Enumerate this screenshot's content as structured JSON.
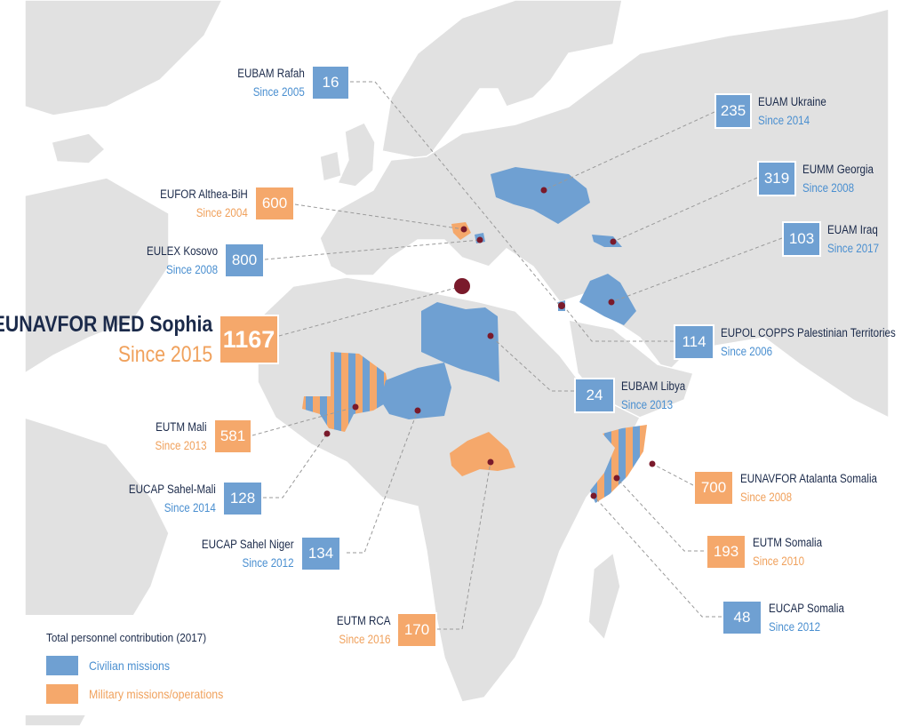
{
  "colors": {
    "civilian": "#6fa0d2",
    "military": "#f5a86b",
    "land": "#e1e1e1",
    "sea": "#ffffff",
    "dot": "#7a1a2b",
    "name_text": "#1b2a4a",
    "civilian_text": "#4a8fd0",
    "military_text": "#f0a15c"
  },
  "missions": [
    {
      "id": "rafah",
      "name": "EUBAM Rafah",
      "since": "Since 2005",
      "count": "16",
      "type": "civilian"
    },
    {
      "id": "ukraine",
      "name": "EUAM Ukraine",
      "since": "Since 2014",
      "count": "235",
      "type": "civilian"
    },
    {
      "id": "georgia",
      "name": "EUMM Georgia",
      "since": "Since 2008",
      "count": "319",
      "type": "civilian"
    },
    {
      "id": "althea",
      "name": "EUFOR Althea-BiH",
      "since": "Since 2004",
      "count": "600",
      "type": "military"
    },
    {
      "id": "iraq",
      "name": "EUAM Iraq",
      "since": "Since 2017",
      "count": "103",
      "type": "civilian"
    },
    {
      "id": "kosovo",
      "name": "EULEX Kosovo",
      "since": "Since 2008",
      "count": "800",
      "type": "civilian"
    },
    {
      "id": "sophia",
      "name": "EUNAVFOR MED Sophia",
      "since": "Since 2015",
      "count": "1167",
      "type": "military"
    },
    {
      "id": "copps",
      "name": "EUPOL COPPS Palestinian Territories",
      "since": "Since 2006",
      "count": "114",
      "type": "civilian"
    },
    {
      "id": "libya",
      "name": "EUBAM Libya",
      "since": "Since 2013",
      "count": "24",
      "type": "civilian"
    },
    {
      "id": "eutm_mali",
      "name": "EUTM Mali",
      "since": "Since 2013",
      "count": "581",
      "type": "military"
    },
    {
      "id": "atalanta",
      "name": "EUNAVFOR Atalanta Somalia",
      "since": "Since 2008",
      "count": "700",
      "type": "military"
    },
    {
      "id": "sahel_mali",
      "name": "EUCAP Sahel-Mali",
      "since": "Since 2014",
      "count": "128",
      "type": "civilian"
    },
    {
      "id": "eutm_somalia",
      "name": "EUTM Somalia",
      "since": "Since 2010",
      "count": "193",
      "type": "military"
    },
    {
      "id": "sahel_niger",
      "name": "EUCAP Sahel Niger",
      "since": "Since 2012",
      "count": "134",
      "type": "civilian"
    },
    {
      "id": "eucap_somalia",
      "name": "EUCAP Somalia",
      "since": "Since 2012",
      "count": "48",
      "type": "civilian"
    },
    {
      "id": "rca",
      "name": "EUTM RCA",
      "since": "Since 2016",
      "count": "170",
      "type": "military"
    }
  ],
  "legend": {
    "title": "Total personnel contribution (2017)",
    "items": [
      {
        "label": "Civilian missions",
        "type": "civilian"
      },
      {
        "label": "Military missions/operations",
        "type": "military"
      }
    ]
  }
}
